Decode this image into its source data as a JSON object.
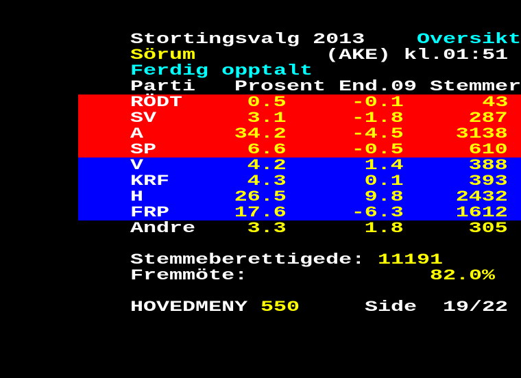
{
  "colors": {
    "background": "#000000",
    "red_band": "#ff0000",
    "blue_band": "#0000ff",
    "white": "#ffffff",
    "yellow": "#ffff00",
    "cyan": "#00ffff"
  },
  "header": {
    "title": "Stortingsvalg 2013",
    "section": "Oversikt",
    "municipality": "Sörum",
    "code": "(AKE)",
    "time": "kl.01:51",
    "status": "Ferdig opptalt"
  },
  "columns": [
    "Parti",
    "Prosent",
    "End.09",
    "Stemmer"
  ],
  "rows": [
    {
      "party": "RÖDT",
      "pct": "0.5",
      "change": "-0.1",
      "votes": "43",
      "band": "red"
    },
    {
      "party": "SV",
      "pct": "3.1",
      "change": "-1.8",
      "votes": "287",
      "band": "red"
    },
    {
      "party": "A",
      "pct": "34.2",
      "change": "-4.5",
      "votes": "3138",
      "band": "red"
    },
    {
      "party": "SP",
      "pct": "6.6",
      "change": "-0.5",
      "votes": "610",
      "band": "red"
    },
    {
      "party": "V",
      "pct": "4.2",
      "change": "1.4",
      "votes": "388",
      "band": "blue"
    },
    {
      "party": "KRF",
      "pct": "4.3",
      "change": "0.1",
      "votes": "393",
      "band": "blue"
    },
    {
      "party": "H",
      "pct": "26.5",
      "change": "9.8",
      "votes": "2432",
      "band": "blue"
    },
    {
      "party": "FRP",
      "pct": "17.6",
      "change": "-6.3",
      "votes": "1612",
      "band": "blue"
    },
    {
      "party": "Andre",
      "pct": "3.3",
      "change": "1.8",
      "votes": "305",
      "band": "none"
    }
  ],
  "summary": {
    "eligible_label": "Stemmeberettigede:",
    "eligible": "11191",
    "turnout_label": "Fremmöte:",
    "turnout": "82.0%"
  },
  "footer": {
    "menu_label": "HOVEDMENY",
    "menu_page": "550",
    "side_label": "Side",
    "side": "19/22"
  }
}
